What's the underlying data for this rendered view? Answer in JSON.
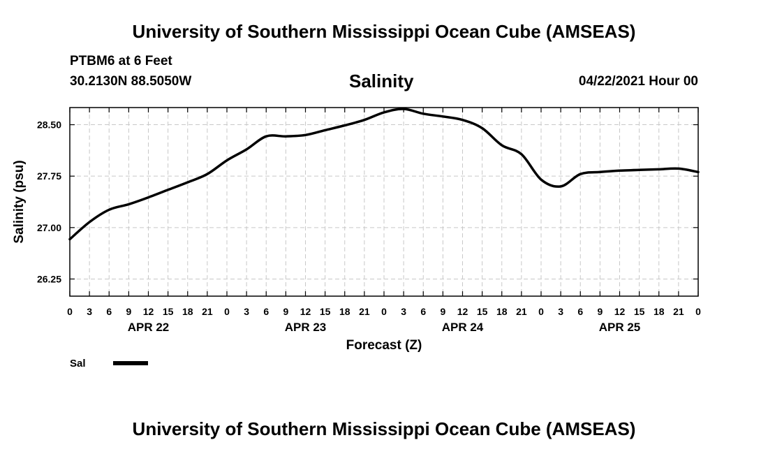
{
  "header": {
    "title": "University of Southern Mississippi Ocean Cube (AMSEAS)",
    "station": "PTBM6 at 6 Feet",
    "coords": "30.2130N  88.5050W",
    "timestamp": "04/22/2021 Hour 00"
  },
  "footer": {
    "title": "University of Southern Mississippi Ocean Cube (AMSEAS)"
  },
  "chart_data": {
    "type": "line",
    "title": "Salinity",
    "xlabel": "Forecast (Z)",
    "ylabel": "Salinity (psu)",
    "ylim": [
      26.0,
      28.75
    ],
    "yticks": [
      26.25,
      27.0,
      27.75,
      28.5
    ],
    "ytick_labels": [
      "26.25",
      "27.00",
      "27.75",
      "28.50"
    ],
    "xlim": [
      0,
      96
    ],
    "xtick_labels": [
      "0",
      "3",
      "6",
      "9",
      "12",
      "15",
      "18",
      "21",
      "0",
      "3",
      "6",
      "9",
      "12",
      "15",
      "18",
      "21",
      "0",
      "3",
      "6",
      "9",
      "12",
      "15",
      "18",
      "21",
      "0",
      "3",
      "6",
      "9",
      "12",
      "15",
      "18",
      "21",
      "0"
    ],
    "day_labels": [
      {
        "label": "APR 22",
        "x": 12
      },
      {
        "label": "APR 23",
        "x": 36
      },
      {
        "label": "APR 24",
        "x": 60
      },
      {
        "label": "APR 25",
        "x": 84
      }
    ],
    "grid": true,
    "legend": {
      "position": "bottom-left",
      "entries": [
        "Sal"
      ]
    },
    "line_color": "#000000",
    "series": [
      {
        "name": "Sal",
        "x": [
          0,
          3,
          6,
          9,
          12,
          15,
          18,
          21,
          24,
          27,
          30,
          33,
          36,
          39,
          42,
          45,
          48,
          51,
          54,
          57,
          60,
          63,
          66,
          69,
          72,
          75,
          78,
          81,
          84,
          87,
          90,
          93,
          96
        ],
        "y": [
          26.83,
          27.08,
          27.26,
          27.34,
          27.44,
          27.55,
          27.66,
          27.78,
          27.98,
          28.14,
          28.33,
          28.33,
          28.35,
          28.42,
          28.49,
          28.57,
          28.68,
          28.73,
          28.66,
          28.62,
          28.57,
          28.45,
          28.2,
          28.07,
          27.7,
          27.6,
          27.78,
          27.81,
          27.83,
          27.84,
          27.85,
          27.86,
          27.81
        ]
      }
    ]
  }
}
